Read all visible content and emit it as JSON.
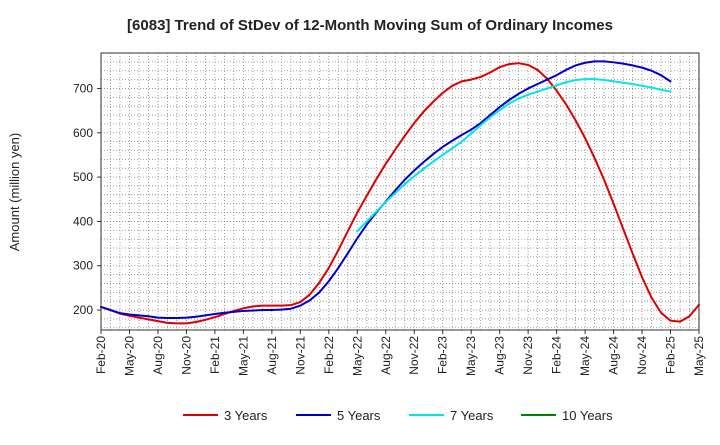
{
  "chart_data": {
    "type": "line",
    "title": "[6083]  Trend of StDev of 12-Month Moving Sum of Ordinary Incomes",
    "xlabel": "",
    "ylabel": "Amount (million yen)",
    "ylim": [
      155,
      780
    ],
    "yticks": [
      200,
      300,
      400,
      500,
      600,
      700
    ],
    "grid": true,
    "legend_position": "bottom",
    "x_tick_labels": [
      "Feb-20",
      "May-20",
      "Aug-20",
      "Nov-20",
      "Feb-21",
      "May-21",
      "Aug-21",
      "Nov-21",
      "Feb-22",
      "May-22",
      "Aug-22",
      "Nov-22",
      "Feb-23",
      "May-23",
      "Aug-23",
      "Nov-23",
      "Feb-24",
      "May-24",
      "Aug-24",
      "Nov-24",
      "Feb-25",
      "May-25"
    ],
    "series": [
      {
        "name": "3 Years",
        "color": "#dd0000",
        "start_index": 0,
        "values": [
          207,
          200,
          192,
          187,
          183,
          179,
          175,
          171,
          170,
          170,
          173,
          178,
          184,
          191,
          198,
          204,
          208,
          210,
          210,
          210,
          211,
          218,
          235,
          262,
          295,
          335,
          378,
          420,
          458,
          495,
          530,
          562,
          593,
          622,
          648,
          670,
          690,
          706,
          716,
          720,
          726,
          736,
          748,
          755,
          757,
          753,
          742,
          722,
          695,
          664,
          628,
          588,
          543,
          494,
          440,
          384,
          328,
          274,
          228,
          194,
          176,
          174,
          186,
          212
        ]
      },
      {
        "name": "5 Years",
        "color": "#0000cc",
        "start_index": 0,
        "values": [
          207,
          200,
          193,
          190,
          188,
          186,
          183,
          182,
          182,
          183,
          185,
          188,
          191,
          194,
          196,
          198,
          199,
          200,
          200,
          201,
          203,
          210,
          222,
          240,
          265,
          295,
          328,
          362,
          393,
          420,
          445,
          470,
          494,
          515,
          534,
          552,
          568,
          582,
          595,
          607,
          622,
          640,
          658,
          674,
          688,
          700,
          710,
          720,
          730,
          742,
          752,
          758,
          761,
          761,
          759,
          756,
          752,
          747,
          740,
          730,
          716
        ]
      },
      {
        "name": "7 Years",
        "color": "#00e5e5",
        "start_index": 27,
        "values": [
          378,
          400,
          422,
          444,
          464,
          484,
          502,
          519,
          535,
          550,
          565,
          580,
          598,
          617,
          635,
          651,
          666,
          677,
          686,
          693,
          700,
          707,
          714,
          719,
          721,
          721,
          719,
          716,
          713,
          710,
          706,
          702,
          697,
          693
        ]
      },
      {
        "name": "10 Years",
        "color": "#008000",
        "start_index": 0,
        "values": []
      }
    ]
  }
}
